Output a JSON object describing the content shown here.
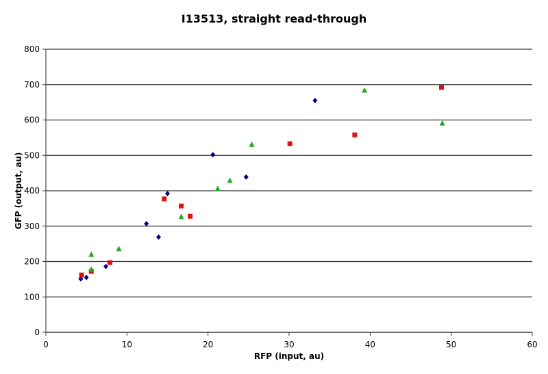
{
  "chart_data": {
    "type": "scatter",
    "title": "I13513, straight read-through",
    "xlabel": "RFP (input, au)",
    "ylabel": "GFP (output, au)",
    "xlim": [
      0,
      60
    ],
    "ylim": [
      0,
      800
    ],
    "xticks": [
      0,
      10,
      20,
      30,
      40,
      50,
      60
    ],
    "yticks": [
      0,
      100,
      200,
      300,
      400,
      500,
      600,
      700,
      800
    ],
    "grid": "horizontal",
    "legend": "none",
    "series": [
      {
        "name": "series-1",
        "marker": "diamond",
        "color": "#000080",
        "points": [
          [
            4.3,
            151
          ],
          [
            5.0,
            155
          ],
          [
            7.4,
            186
          ],
          [
            12.4,
            307
          ],
          [
            13.9,
            269
          ],
          [
            15.0,
            392
          ],
          [
            20.6,
            502
          ],
          [
            24.7,
            439
          ],
          [
            33.2,
            655
          ]
        ]
      },
      {
        "name": "series-2",
        "marker": "square",
        "color": "#dd1111",
        "points": [
          [
            4.4,
            162
          ],
          [
            5.6,
            172
          ],
          [
            7.9,
            197
          ],
          [
            14.6,
            377
          ],
          [
            16.7,
            357
          ],
          [
            17.8,
            328
          ],
          [
            30.1,
            533
          ],
          [
            38.1,
            558
          ],
          [
            48.8,
            692
          ]
        ]
      },
      {
        "name": "series-3",
        "marker": "triangle",
        "color": "#22aa22",
        "points": [
          [
            5.6,
            220
          ],
          [
            5.6,
            178
          ],
          [
            9.0,
            236
          ],
          [
            16.7,
            327
          ],
          [
            21.2,
            406
          ],
          [
            22.7,
            429
          ],
          [
            25.4,
            531
          ],
          [
            39.3,
            684
          ],
          [
            48.9,
            591
          ]
        ]
      }
    ]
  }
}
